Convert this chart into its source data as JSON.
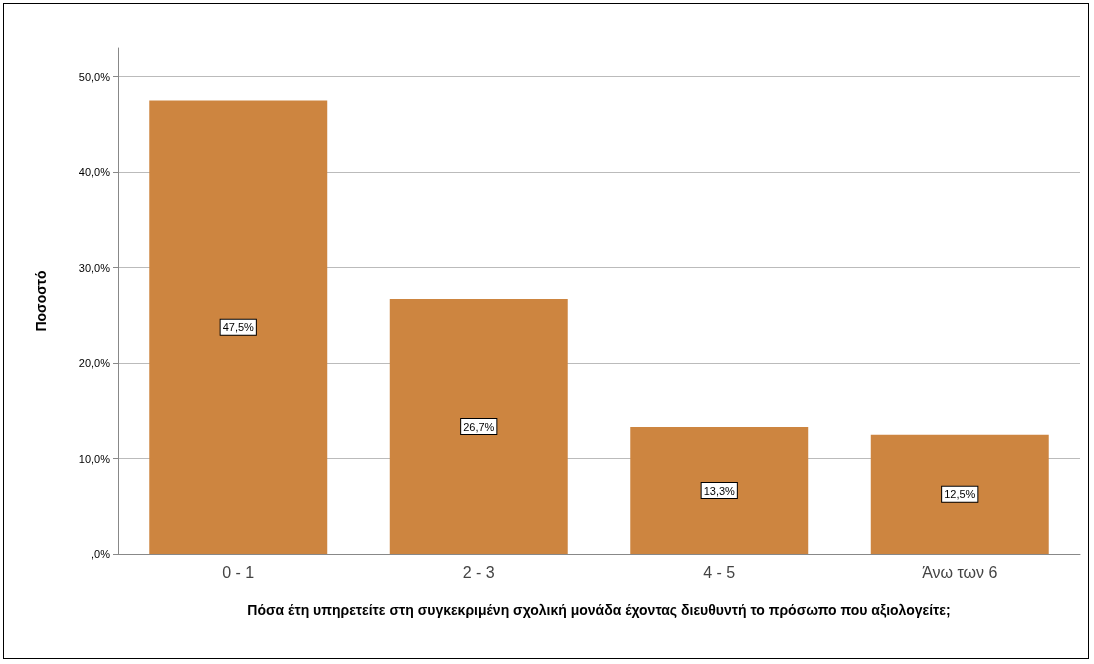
{
  "chart_data": {
    "type": "bar",
    "xlabel": "Πόσα έτη υπηρετείτε στη συγκεκριμένη σχολική μονάδα έχοντας διευθυντή το πρόσωπο που αξιολογείτε;",
    "ylabel": "Ποσοστό",
    "categories": [
      "0 - 1",
      "2 - 3",
      "4 - 5",
      "Άνω των 6"
    ],
    "values": [
      47.5,
      26.7,
      13.3,
      12.5
    ],
    "value_labels": [
      "47,5%",
      "26,7%",
      "13,3%",
      "12,5%"
    ],
    "color": "#cd8540",
    "ylim": [
      0,
      53
    ],
    "yticks": [
      {
        "value": 0,
        "label": ",0%"
      },
      {
        "value": 10,
        "label": "10,0%"
      },
      {
        "value": 20,
        "label": "20,0%"
      },
      {
        "value": 30,
        "label": "30,0%"
      },
      {
        "value": 40,
        "label": "40,0%"
      },
      {
        "value": 50,
        "label": "50,0%"
      }
    ],
    "grid": "y"
  }
}
